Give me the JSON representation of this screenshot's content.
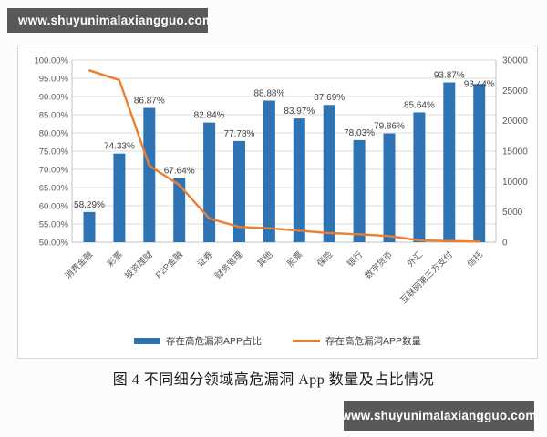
{
  "watermark_top": "www.shuyunimalaxiangguo.com",
  "watermark_bottom": "www.shuyunimalaxiangguo.com",
  "caption": "图 4 不同细分领域高危漏洞 App 数量及占比情况",
  "colors": {
    "bar": "#2e74b5",
    "line": "#ed7d31",
    "grid": "#dcdcdc",
    "axis_line": "#c0c0c0",
    "axis_text": "#595959",
    "data_label_text": "#404040",
    "watermark_bg": "#58595b",
    "watermark_text": "#ffffff",
    "chart_bg": "#ffffff"
  },
  "chart_data": {
    "type": "bar",
    "subtype": "combo-bar-line",
    "categories": [
      "消费金融",
      "彩票",
      "投资理财",
      "P2P金融",
      "证券",
      "财务管理",
      "其他",
      "股票",
      "保险",
      "银行",
      "数字货币",
      "外汇",
      "互联网第三方支付",
      "信托"
    ],
    "series": [
      {
        "name": "存在高危漏洞APP占比",
        "type": "bar",
        "axis": "left",
        "color": "#2e74b5",
        "values": [
          58.29,
          74.33,
          86.87,
          67.64,
          82.84,
          77.78,
          88.88,
          83.97,
          87.69,
          78.03,
          79.86,
          85.64,
          93.87,
          93.44
        ],
        "labels": [
          "58.29%",
          "74.33%",
          "86.87%",
          "67.64%",
          "82.84%",
          "77.78%",
          "88.88%",
          "83.97%",
          "87.69%",
          "78.03%",
          "79.86%",
          "85.64%",
          "93.87%",
          "93.44%"
        ]
      },
      {
        "name": "存在高危漏洞APP数量",
        "type": "line",
        "axis": "right",
        "color": "#ed7d31",
        "estimated": true,
        "values": [
          28300,
          26700,
          12600,
          9400,
          3900,
          2500,
          2300,
          1900,
          1500,
          1300,
          1000,
          300,
          200,
          100
        ]
      }
    ],
    "left_axis": {
      "min": 50,
      "max": 100,
      "step": 5,
      "format": "percent",
      "tick_labels": [
        "100.00%",
        "95.00%",
        "90.00%",
        "85.00%",
        "80.00%",
        "75.00%",
        "70.00%",
        "65.00%",
        "60.00%",
        "55.00%",
        "50.00%"
      ]
    },
    "right_axis": {
      "min": 0,
      "max": 30000,
      "step": 5000,
      "tick_labels": [
        "30000",
        "25000",
        "20000",
        "15000",
        "10000",
        "5000",
        "0"
      ]
    },
    "grid": true,
    "legend_position": "bottom",
    "x_label_rotation": -45
  }
}
